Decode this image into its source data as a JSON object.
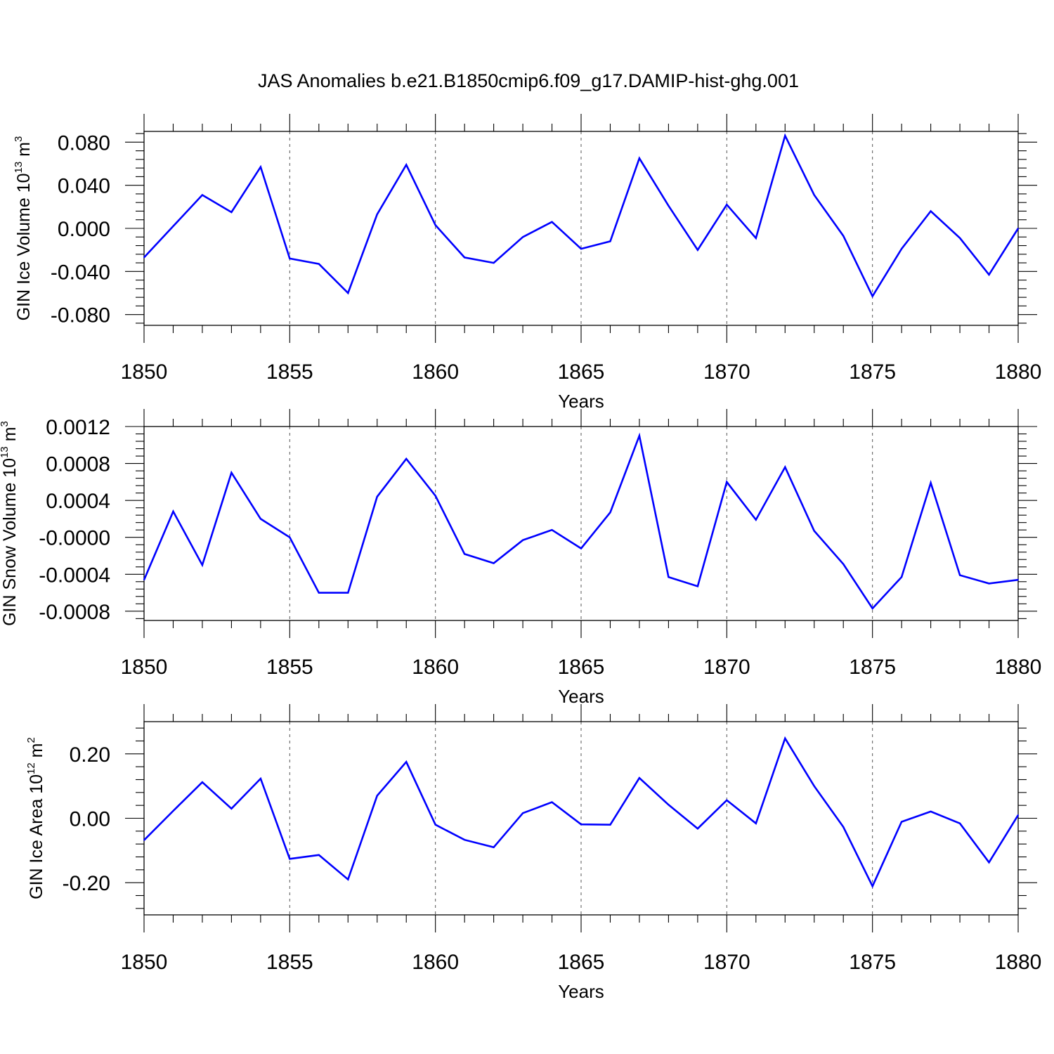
{
  "title": "JAS Anomalies b.e21.B1850cmip6.f09_g17.DAMIP-hist-ghg.001",
  "colors": {
    "series": "#0000ff",
    "axes": "#000000",
    "grid": "#555555"
  },
  "chart_data": [
    {
      "type": "line",
      "ylabel": {
        "text": "GIN Ice Volume 10",
        "sup": "13",
        "unit": "m",
        "unit_sup": "3"
      },
      "xlabel": "Years",
      "xlim": [
        1850,
        1880
      ],
      "ylim": [
        -0.09,
        0.09
      ],
      "grid": "x-dashed",
      "x_ticks": [
        "1850",
        "1855",
        "1860",
        "1865",
        "1870",
        "1875",
        "1880"
      ],
      "y_ticks": [
        {
          "value": 0.08,
          "label": "0.080"
        },
        {
          "value": 0.04,
          "label": "0.040"
        },
        {
          "value": 0.0,
          "label": "0.000"
        },
        {
          "value": -0.04,
          "label": "-0.040"
        },
        {
          "value": -0.08,
          "label": "-0.080"
        }
      ],
      "x": [
        1850,
        1851,
        1852,
        1853,
        1854,
        1855,
        1856,
        1857,
        1858,
        1859,
        1860,
        1861,
        1862,
        1863,
        1864,
        1865,
        1866,
        1867,
        1868,
        1869,
        1870,
        1871,
        1872,
        1873,
        1874,
        1875,
        1876,
        1877,
        1878,
        1879,
        1880
      ],
      "series": [
        {
          "values": [
            -0.027,
            0.002,
            0.031,
            0.015,
            0.057,
            -0.028,
            -0.033,
            -0.06,
            0.013,
            0.059,
            0.003,
            -0.027,
            -0.032,
            -0.008,
            0.006,
            -0.019,
            -0.012,
            0.065,
            0.021,
            -0.02,
            0.022,
            -0.009,
            0.086,
            0.031,
            -0.007,
            -0.063,
            -0.019,
            0.016,
            -0.009,
            -0.043,
            0.0
          ]
        }
      ]
    },
    {
      "type": "line",
      "ylabel": {
        "text": "GIN Snow Volume 10",
        "sup": "13",
        "unit": "m",
        "unit_sup": "3"
      },
      "xlabel": "Years",
      "xlim": [
        1850,
        1880
      ],
      "ylim": [
        -0.0009,
        0.0012
      ],
      "grid": "x-dashed",
      "x_ticks": [
        "1850",
        "1855",
        "1860",
        "1865",
        "1870",
        "1875",
        "1880"
      ],
      "y_ticks": [
        {
          "value": 0.0012,
          "label": "0.0012"
        },
        {
          "value": 0.0008,
          "label": "0.0008"
        },
        {
          "value": 0.0004,
          "label": "0.0004"
        },
        {
          "value": 0.0,
          "label": "-0.0000"
        },
        {
          "value": -0.0004,
          "label": "-0.0004"
        },
        {
          "value": -0.0008,
          "label": "-0.0008"
        }
      ],
      "x": [
        1850,
        1851,
        1852,
        1853,
        1854,
        1855,
        1856,
        1857,
        1858,
        1859,
        1860,
        1861,
        1862,
        1863,
        1864,
        1865,
        1866,
        1867,
        1868,
        1869,
        1870,
        1871,
        1872,
        1873,
        1874,
        1875,
        1876,
        1877,
        1878,
        1879,
        1880
      ],
      "series": [
        {
          "values": [
            -0.00046,
            0.00028,
            -0.0003,
            0.0007,
            0.0002,
            0.0,
            -0.0006,
            -0.0006,
            0.00044,
            0.00085,
            0.00045,
            -0.00018,
            -0.00028,
            -3e-05,
            8e-05,
            -0.00012,
            0.00027,
            0.0011,
            -0.00043,
            -0.00053,
            0.0006,
            0.00019,
            0.00076,
            7e-05,
            -0.00029,
            -0.00077,
            -0.00043,
            0.00059,
            -0.00041,
            -0.0005,
            -0.00046
          ]
        }
      ]
    },
    {
      "type": "line",
      "ylabel": {
        "text": "GIN Ice Area 10",
        "sup": "12",
        "unit": "m",
        "unit_sup": "2"
      },
      "xlabel": "Years",
      "xlim": [
        1850,
        1880
      ],
      "ylim": [
        -0.3,
        0.3
      ],
      "grid": "x-dashed",
      "x_ticks": [
        "1850",
        "1855",
        "1860",
        "1865",
        "1870",
        "1875",
        "1880"
      ],
      "y_ticks": [
        {
          "value": 0.2,
          "label": "0.20"
        },
        {
          "value": 0.0,
          "label": "0.00"
        },
        {
          "value": -0.2,
          "label": "-0.20"
        }
      ],
      "x": [
        1850,
        1851,
        1852,
        1853,
        1854,
        1855,
        1856,
        1857,
        1858,
        1859,
        1860,
        1861,
        1862,
        1863,
        1864,
        1865,
        1866,
        1867,
        1868,
        1869,
        1870,
        1871,
        1872,
        1873,
        1874,
        1875,
        1876,
        1877,
        1878,
        1879,
        1880
      ],
      "series": [
        {
          "values": [
            -0.068,
            0.023,
            0.112,
            0.03,
            0.123,
            -0.126,
            -0.114,
            -0.19,
            0.07,
            0.175,
            -0.02,
            -0.067,
            -0.09,
            0.016,
            0.05,
            -0.019,
            -0.02,
            0.125,
            0.042,
            -0.032,
            0.056,
            -0.016,
            0.248,
            0.1,
            -0.027,
            -0.211,
            -0.011,
            0.021,
            -0.016,
            -0.137,
            0.01
          ]
        }
      ]
    }
  ]
}
